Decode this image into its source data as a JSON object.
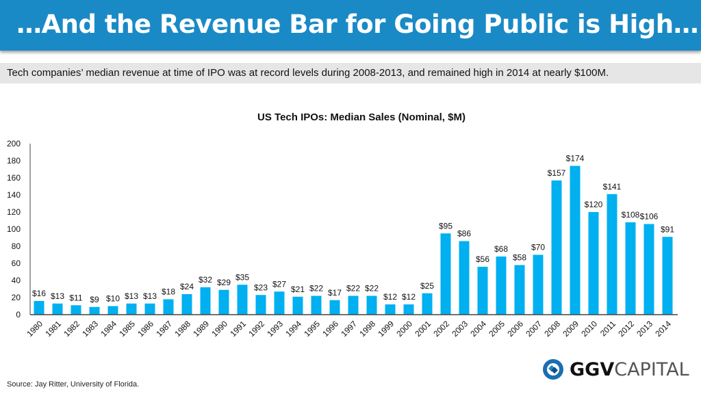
{
  "header": {
    "title": "…And the Revenue Bar for Going Public is High…"
  },
  "subtitle": "Tech companies’ median revenue at time of IPO was at record levels during 2008-2013, and remained high in 2014 at nearly $100M.",
  "source": "Source: Jay Ritter, University of Florida.",
  "logo": {
    "bold": "GGV",
    "light": "CAPITAL"
  },
  "colors": {
    "header": "#1a8ac6",
    "bar": "#00b0f0"
  },
  "chart_data": {
    "type": "bar",
    "title": "US Tech IPOs: Median Sales (Nominal, $M)",
    "xlabel": "",
    "ylabel": "",
    "ylim": [
      0,
      200
    ],
    "yticks": [
      0,
      20,
      40,
      60,
      80,
      100,
      120,
      140,
      160,
      180,
      200
    ],
    "grid": false,
    "categories": [
      "1980",
      "1981",
      "1982",
      "1983",
      "1984",
      "1985",
      "1986",
      "1987",
      "1988",
      "1989",
      "1990",
      "1991",
      "1992",
      "1993",
      "1994",
      "1995",
      "1996",
      "1997",
      "1998",
      "1999",
      "2000",
      "2001",
      "2002",
      "2003",
      "2004",
      "2005",
      "2006",
      "2007",
      "2008",
      "2009",
      "2010",
      "2011",
      "2012",
      "2013",
      "2014"
    ],
    "values": [
      16,
      13,
      11,
      9,
      10,
      13,
      13,
      18,
      24,
      32,
      29,
      35,
      23,
      27,
      21,
      22,
      17,
      22,
      22,
      12,
      12,
      25,
      95,
      86,
      56,
      68,
      58,
      70,
      157,
      174,
      120,
      141,
      108,
      106,
      91
    ],
    "data_labels": [
      "$16",
      "$13",
      "$11",
      "$9",
      "$10",
      "$13",
      "$13",
      "$18",
      "$24",
      "$32",
      "$29",
      "$35",
      "$23",
      "$27",
      "$21",
      "$22",
      "$17",
      "$22",
      "$22",
      "$12",
      "$12",
      "$25",
      "$95",
      "$86",
      "$56",
      "$68",
      "$58",
      "$70",
      "$157",
      "$174",
      "$120",
      "$141",
      "$108",
      "$106",
      "$91"
    ]
  }
}
